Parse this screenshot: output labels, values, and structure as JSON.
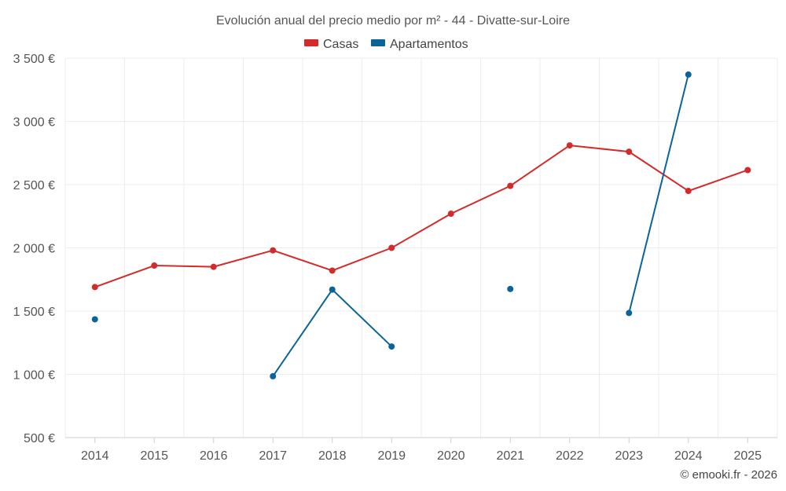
{
  "chart_data": {
    "type": "line",
    "title": "Evolución anual del precio medio por m² - 44 - Divatte-sur-Loire",
    "categories": [
      "2014",
      "2015",
      "2016",
      "2017",
      "2018",
      "2019",
      "2020",
      "2021",
      "2022",
      "2023",
      "2024",
      "2025"
    ],
    "series": [
      {
        "name": "Casas",
        "color": "#d42a2a",
        "values": [
          1690,
          1860,
          1850,
          1980,
          1820,
          2000,
          2270,
          2490,
          2810,
          2760,
          2450,
          2615
        ]
      },
      {
        "name": "Apartamentos",
        "color": "#0b6498",
        "values": [
          1435,
          null,
          null,
          985,
          1670,
          1220,
          null,
          1675,
          null,
          1485,
          3370,
          null
        ]
      }
    ],
    "ylim": [
      500,
      3500
    ],
    "yticks": [
      500,
      1000,
      1500,
      2000,
      2500,
      3000,
      3500
    ],
    "ytick_labels": [
      "500 €",
      "1 000 €",
      "1 500 €",
      "2 000 €",
      "2 500 €",
      "3 000 €",
      "3 500 €"
    ],
    "legend_position": "top-center",
    "grid": true
  },
  "credit": "© emooki.fr - 2026"
}
